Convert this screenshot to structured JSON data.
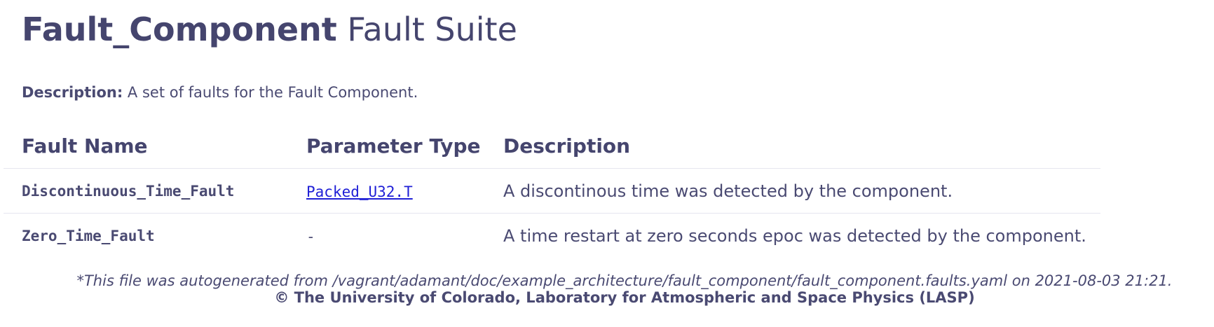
{
  "header": {
    "title_strong": "Fault_Component",
    "title_rest": "Fault Suite"
  },
  "description": {
    "label": "Description:",
    "text": "A set of faults for the Fault Component."
  },
  "table": {
    "columns": [
      "Fault Name",
      "Parameter Type",
      "Description"
    ],
    "rows": [
      {
        "name": "Discontinuous_Time_Fault",
        "param_type": "Packed_U32.T",
        "param_is_link": true,
        "description": "A discontinous time was detected by the component."
      },
      {
        "name": "Zero_Time_Fault",
        "param_type": "-",
        "param_is_link": false,
        "description": "A time restart at zero seconds epoc was detected by the component."
      }
    ]
  },
  "footer": {
    "autogen_note": "*This file was autogenerated from /vagrant/adamant/doc/example_architecture/fault_component/fault_component.faults.yaml on 2021-08-03 21:21.",
    "copyright": "© The University of Colorado, Laboratory for Atmospheric and Space Physics (LASP)"
  },
  "colors": {
    "text": "#4a4a72",
    "link": "#1f1fd6",
    "rule": "#e6e6ef"
  }
}
